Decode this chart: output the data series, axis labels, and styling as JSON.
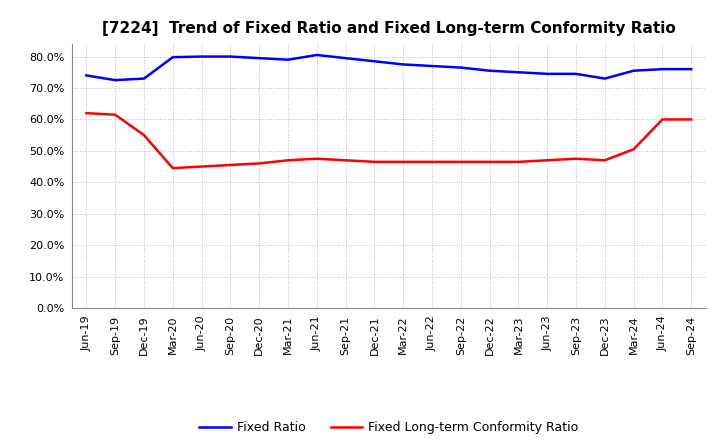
{
  "title": "[7224]  Trend of Fixed Ratio and Fixed Long-term Conformity Ratio",
  "x_labels": [
    "Jun-19",
    "Sep-19",
    "Dec-19",
    "Mar-20",
    "Jun-20",
    "Sep-20",
    "Dec-20",
    "Mar-21",
    "Jun-21",
    "Sep-21",
    "Dec-21",
    "Mar-22",
    "Jun-22",
    "Sep-22",
    "Dec-22",
    "Mar-23",
    "Jun-23",
    "Sep-23",
    "Dec-23",
    "Mar-24",
    "Jun-24",
    "Sep-24"
  ],
  "fixed_ratio": [
    74.0,
    72.5,
    73.0,
    79.8,
    80.0,
    80.0,
    79.5,
    79.0,
    80.5,
    79.5,
    78.5,
    77.5,
    77.0,
    76.5,
    75.5,
    75.0,
    74.5,
    74.5,
    73.0,
    75.5,
    76.0,
    76.0
  ],
  "fixed_lt_ratio": [
    62.0,
    61.5,
    55.0,
    44.5,
    45.0,
    45.5,
    46.0,
    47.0,
    47.5,
    47.0,
    46.5,
    46.5,
    46.5,
    46.5,
    46.5,
    46.5,
    47.0,
    47.5,
    47.0,
    50.5,
    60.0,
    60.0
  ],
  "fixed_ratio_color": "#0000ff",
  "fixed_lt_ratio_color": "#ff0000",
  "ylim": [
    0,
    84
  ],
  "yticks": [
    0,
    10,
    20,
    30,
    40,
    50,
    60,
    70,
    80
  ],
  "background_color": "#ffffff",
  "grid_color": "#bbbbbb",
  "legend_fixed": "Fixed Ratio",
  "legend_fixed_lt": "Fixed Long-term Conformity Ratio",
  "line_width": 1.8,
  "title_fontsize": 11,
  "tick_fontsize": 8,
  "legend_fontsize": 9
}
